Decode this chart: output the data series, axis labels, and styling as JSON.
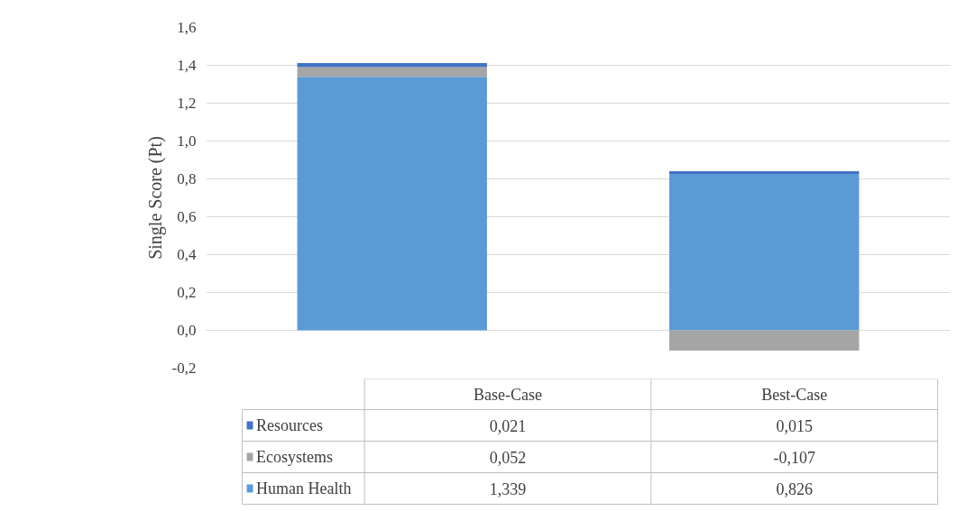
{
  "chart_data": {
    "type": "bar",
    "stacked": true,
    "ylabel": "Single Score (Pt)",
    "categories": [
      "Base-Case",
      "Best-Case"
    ],
    "series": [
      {
        "name": "Human Health",
        "color": "#5b9bd5",
        "values": [
          1.339,
          0.826
        ],
        "value_labels": [
          "1,339",
          "0,826"
        ]
      },
      {
        "name": "Ecosystems",
        "color": "#a5a5a5",
        "values": [
          0.052,
          -0.107
        ],
        "value_labels": [
          "0,052",
          "-0,107"
        ]
      },
      {
        "name": "Resources",
        "color": "#4472c4",
        "values": [
          0.021,
          0.015
        ],
        "value_labels": [
          "0,021",
          "0,015"
        ]
      }
    ],
    "ylim": [
      -0.2,
      1.6
    ],
    "yticks": [
      {
        "value": -0.2,
        "label": "-0,2"
      },
      {
        "value": 0,
        "label": "0,0"
      },
      {
        "value": 0.2,
        "label": "0,2"
      },
      {
        "value": 0.4,
        "label": "0,4"
      },
      {
        "value": 0.6,
        "label": "0,6"
      },
      {
        "value": 0.8,
        "label": "0,8"
      },
      {
        "value": 1.0,
        "label": "1,0"
      },
      {
        "value": 1.2,
        "label": "1,2"
      },
      {
        "value": 1.4,
        "label": "1,4"
      },
      {
        "value": 1.6,
        "label": "1,6"
      }
    ],
    "grid": "y",
    "legend": "bottom"
  }
}
